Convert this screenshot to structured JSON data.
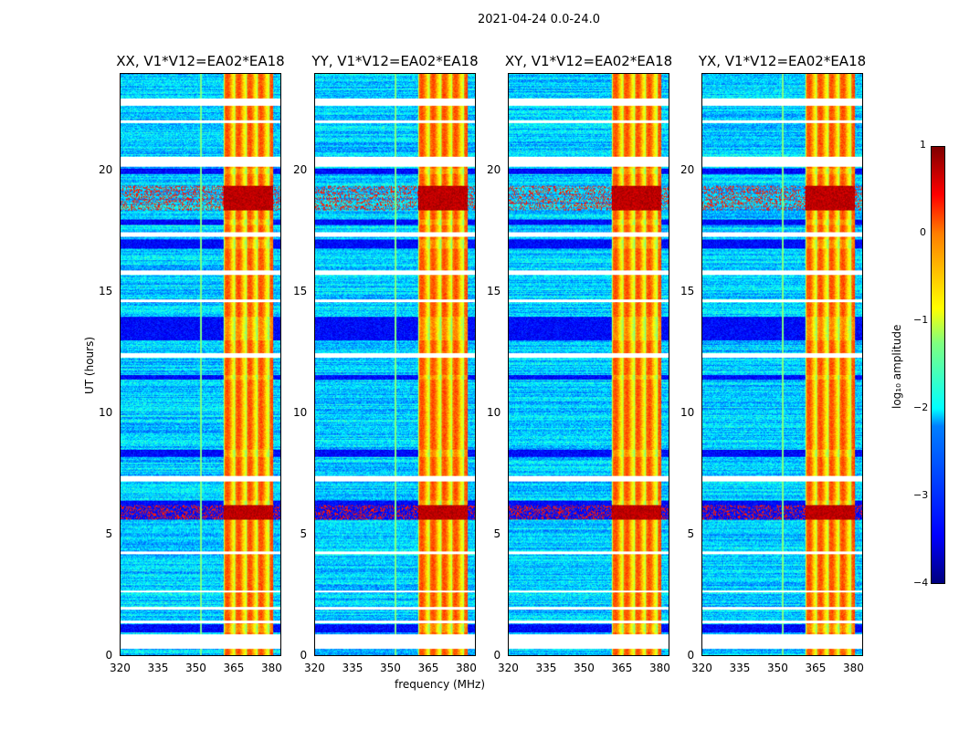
{
  "chart_data": {
    "type": "heatmap",
    "title": "2021-04-24 0.0-24.0",
    "xlabel": "frequency (MHz)",
    "ylabel": "UT (hours)",
    "xlim": [
      320,
      384
    ],
    "ylim": [
      0,
      24
    ],
    "xticks": [
      "320",
      "335",
      "350",
      "365",
      "380"
    ],
    "yticks": [
      "0",
      "5",
      "10",
      "15",
      "20"
    ],
    "panels": [
      {
        "title": "XX, V1*V12=EA02*EA18"
      },
      {
        "title": "YY, V1*V12=EA02*EA18"
      },
      {
        "title": "XY, V1*V12=EA02*EA18"
      },
      {
        "title": "YX, V1*V12=EA02*EA18"
      }
    ],
    "colorbar": {
      "label": "log₁₀ amplitude",
      "range": [
        -4,
        1
      ],
      "ticks": [
        "1",
        "0",
        "−1",
        "−2",
        "−3",
        "−4"
      ],
      "colormap": "jet"
    },
    "rfi_band_mhz": [
      361,
      381
    ],
    "flagged_hours": [
      [
        0.3,
        0.9
      ],
      [
        1.35,
        1.45
      ],
      [
        1.9,
        2.0
      ],
      [
        2.6,
        2.7
      ],
      [
        4.2,
        4.3
      ],
      [
        7.2,
        7.4
      ],
      [
        12.3,
        12.5
      ],
      [
        14.6,
        14.7
      ],
      [
        15.7,
        15.9
      ],
      [
        17.3,
        17.5
      ],
      [
        20.2,
        20.6
      ],
      [
        22.0,
        22.1
      ],
      [
        22.7,
        23.0
      ]
    ],
    "dark_hours": [
      [
        0.95,
        1.3
      ],
      [
        5.6,
        6.4
      ],
      [
        8.2,
        8.5
      ],
      [
        11.4,
        11.6
      ],
      [
        13.0,
        14.0
      ],
      [
        16.8,
        17.2
      ],
      [
        17.8,
        18.0
      ],
      [
        19.9,
        20.1
      ]
    ],
    "hot_hours": [
      [
        5.6,
        6.2
      ],
      [
        18.4,
        19.4
      ]
    ]
  }
}
